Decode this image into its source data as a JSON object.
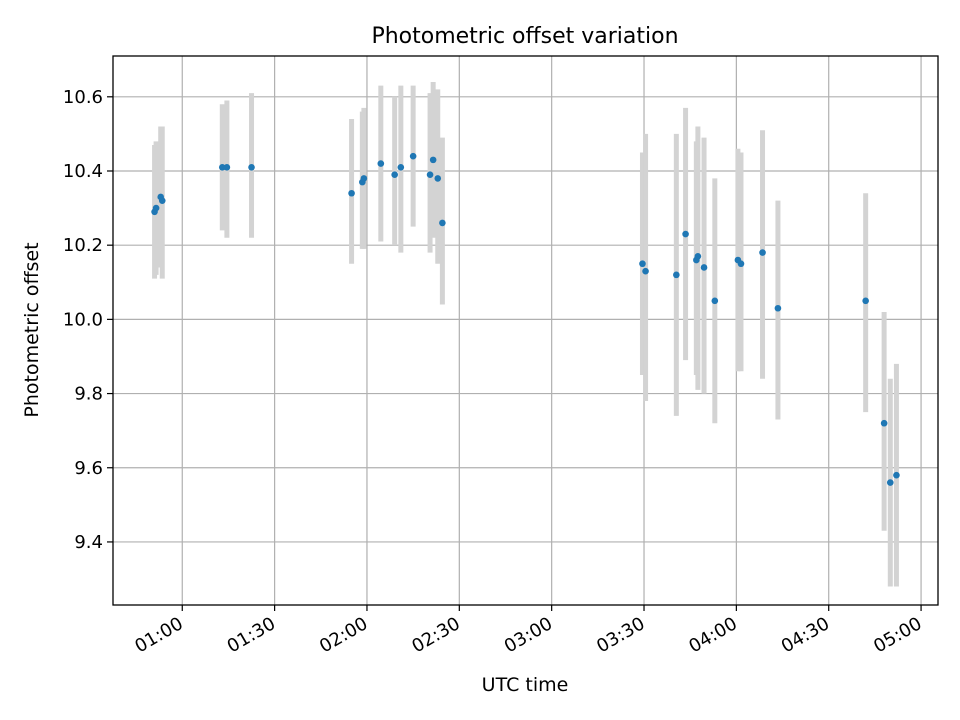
{
  "chart_data": {
    "type": "scatter",
    "title": "Photometric offset variation",
    "xlabel": "UTC time",
    "ylabel": "Photometric offset",
    "xlim": [
      "00:37:30",
      "05:05:30"
    ],
    "ylim": [
      9.23,
      10.71
    ],
    "x_ticks": [
      "01:00",
      "01:30",
      "02:00",
      "02:30",
      "03:00",
      "03:30",
      "04:00",
      "04:30",
      "05:00"
    ],
    "y_ticks": [
      "9.4",
      "9.6",
      "9.8",
      "10.0",
      "10.2",
      "10.4",
      "10.6"
    ],
    "grid": true,
    "series": [
      {
        "marker_color": "#1f77b4",
        "errorbar_color": "#d3d3d3",
        "points": [
          {
            "x": "00:51:00",
            "y": 10.29,
            "ylow": 10.11,
            "yhigh": 10.47
          },
          {
            "x": "00:51:30",
            "y": 10.3,
            "ylow": 10.12,
            "yhigh": 10.48
          },
          {
            "x": "00:53:00",
            "y": 10.33,
            "ylow": 10.14,
            "yhigh": 10.52
          },
          {
            "x": "00:53:30",
            "y": 10.32,
            "ylow": 10.11,
            "yhigh": 10.52
          },
          {
            "x": "01:13:00",
            "y": 10.41,
            "ylow": 10.24,
            "yhigh": 10.58
          },
          {
            "x": "01:14:30",
            "y": 10.41,
            "ylow": 10.22,
            "yhigh": 10.59
          },
          {
            "x": "01:22:30",
            "y": 10.41,
            "ylow": 10.22,
            "yhigh": 10.61
          },
          {
            "x": "01:55:00",
            "y": 10.34,
            "ylow": 10.15,
            "yhigh": 10.54
          },
          {
            "x": "01:58:30",
            "y": 10.37,
            "ylow": 10.19,
            "yhigh": 10.56
          },
          {
            "x": "01:59:00",
            "y": 10.38,
            "ylow": 10.19,
            "yhigh": 10.57
          },
          {
            "x": "02:04:30",
            "y": 10.42,
            "ylow": 10.21,
            "yhigh": 10.63
          },
          {
            "x": "02:09:00",
            "y": 10.39,
            "ylow": 10.2,
            "yhigh": 10.6
          },
          {
            "x": "02:11:00",
            "y": 10.41,
            "ylow": 10.18,
            "yhigh": 10.63
          },
          {
            "x": "02:15:00",
            "y": 10.44,
            "ylow": 10.25,
            "yhigh": 10.63
          },
          {
            "x": "02:20:30",
            "y": 10.39,
            "ylow": 10.18,
            "yhigh": 10.61
          },
          {
            "x": "02:21:30",
            "y": 10.43,
            "ylow": 10.22,
            "yhigh": 10.64
          },
          {
            "x": "02:23:00",
            "y": 10.38,
            "ylow": 10.15,
            "yhigh": 10.62
          },
          {
            "x": "02:24:30",
            "y": 10.26,
            "ylow": 10.04,
            "yhigh": 10.49
          },
          {
            "x": "03:29:30",
            "y": 10.15,
            "ylow": 9.85,
            "yhigh": 10.45
          },
          {
            "x": "03:30:30",
            "y": 10.13,
            "ylow": 9.78,
            "yhigh": 10.5
          },
          {
            "x": "03:40:30",
            "y": 10.12,
            "ylow": 9.74,
            "yhigh": 10.5
          },
          {
            "x": "03:43:30",
            "y": 10.23,
            "ylow": 9.89,
            "yhigh": 10.57
          },
          {
            "x": "03:47:00",
            "y": 10.16,
            "ylow": 9.85,
            "yhigh": 10.48
          },
          {
            "x": "03:47:30",
            "y": 10.17,
            "ylow": 9.81,
            "yhigh": 10.52
          },
          {
            "x": "03:49:30",
            "y": 10.14,
            "ylow": 9.8,
            "yhigh": 10.49
          },
          {
            "x": "03:53:00",
            "y": 10.05,
            "ylow": 9.72,
            "yhigh": 10.38
          },
          {
            "x": "04:00:30",
            "y": 10.16,
            "ylow": 9.86,
            "yhigh": 10.46
          },
          {
            "x": "04:01:30",
            "y": 10.15,
            "ylow": 9.86,
            "yhigh": 10.45
          },
          {
            "x": "04:08:30",
            "y": 10.18,
            "ylow": 9.84,
            "yhigh": 10.51
          },
          {
            "x": "04:13:30",
            "y": 10.03,
            "ylow": 9.73,
            "yhigh": 10.32
          },
          {
            "x": "04:42:00",
            "y": 10.05,
            "ylow": 9.75,
            "yhigh": 10.34
          },
          {
            "x": "04:48:00",
            "y": 9.72,
            "ylow": 9.43,
            "yhigh": 10.02
          },
          {
            "x": "04:50:00",
            "y": 9.56,
            "ylow": 9.28,
            "yhigh": 9.84
          },
          {
            "x": "04:52:00",
            "y": 9.58,
            "ylow": 9.28,
            "yhigh": 9.88
          }
        ]
      }
    ]
  }
}
